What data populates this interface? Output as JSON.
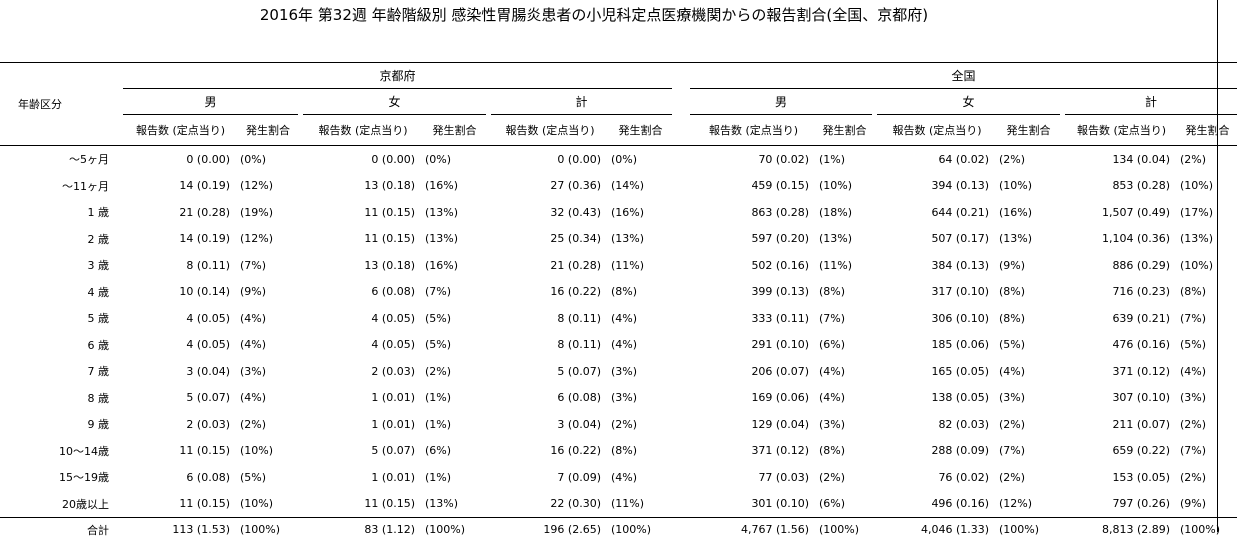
{
  "title": "2016年 第32週 年齢階級別 感染性胃腸炎患者の小児科定点医療機関からの報告割合(全国、京都府)",
  "headers": {
    "age_group": "年齢区分",
    "regions": [
      "京都府",
      "全国"
    ],
    "sexes": [
      "男",
      "女",
      "計"
    ],
    "count": "報告数 (定点当り)",
    "ratio": "発生割合"
  },
  "rows": [
    {
      "age": "～5ヶ月",
      "kyoto": [
        [
          "0 (0.00)",
          "(0%)"
        ],
        [
          "0 (0.00)",
          "(0%)"
        ],
        [
          "0 (0.00)",
          "(0%)"
        ]
      ],
      "national": [
        [
          "70 (0.02)",
          "(1%)"
        ],
        [
          "64 (0.02)",
          "(2%)"
        ],
        [
          "134 (0.04)",
          "(2%)"
        ]
      ]
    },
    {
      "age": "～11ヶ月",
      "kyoto": [
        [
          "14 (0.19)",
          "(12%)"
        ],
        [
          "13 (0.18)",
          "(16%)"
        ],
        [
          "27 (0.36)",
          "(14%)"
        ]
      ],
      "national": [
        [
          "459 (0.15)",
          "(10%)"
        ],
        [
          "394 (0.13)",
          "(10%)"
        ],
        [
          "853 (0.28)",
          "(10%)"
        ]
      ]
    },
    {
      "age": "1 歳",
      "kyoto": [
        [
          "21 (0.28)",
          "(19%)"
        ],
        [
          "11 (0.15)",
          "(13%)"
        ],
        [
          "32 (0.43)",
          "(16%)"
        ]
      ],
      "national": [
        [
          "863 (0.28)",
          "(18%)"
        ],
        [
          "644 (0.21)",
          "(16%)"
        ],
        [
          "1,507 (0.49)",
          "(17%)"
        ]
      ]
    },
    {
      "age": "2 歳",
      "kyoto": [
        [
          "14 (0.19)",
          "(12%)"
        ],
        [
          "11 (0.15)",
          "(13%)"
        ],
        [
          "25 (0.34)",
          "(13%)"
        ]
      ],
      "national": [
        [
          "597 (0.20)",
          "(13%)"
        ],
        [
          "507 (0.17)",
          "(13%)"
        ],
        [
          "1,104 (0.36)",
          "(13%)"
        ]
      ]
    },
    {
      "age": "3 歳",
      "kyoto": [
        [
          "8 (0.11)",
          "(7%)"
        ],
        [
          "13 (0.18)",
          "(16%)"
        ],
        [
          "21 (0.28)",
          "(11%)"
        ]
      ],
      "national": [
        [
          "502 (0.16)",
          "(11%)"
        ],
        [
          "384 (0.13)",
          "(9%)"
        ],
        [
          "886 (0.29)",
          "(10%)"
        ]
      ]
    },
    {
      "age": "4 歳",
      "kyoto": [
        [
          "10 (0.14)",
          "(9%)"
        ],
        [
          "6 (0.08)",
          "(7%)"
        ],
        [
          "16 (0.22)",
          "(8%)"
        ]
      ],
      "national": [
        [
          "399 (0.13)",
          "(8%)"
        ],
        [
          "317 (0.10)",
          "(8%)"
        ],
        [
          "716 (0.23)",
          "(8%)"
        ]
      ]
    },
    {
      "age": "5 歳",
      "kyoto": [
        [
          "4 (0.05)",
          "(4%)"
        ],
        [
          "4 (0.05)",
          "(5%)"
        ],
        [
          "8 (0.11)",
          "(4%)"
        ]
      ],
      "national": [
        [
          "333 (0.11)",
          "(7%)"
        ],
        [
          "306 (0.10)",
          "(8%)"
        ],
        [
          "639 (0.21)",
          "(7%)"
        ]
      ]
    },
    {
      "age": "6 歳",
      "kyoto": [
        [
          "4 (0.05)",
          "(4%)"
        ],
        [
          "4 (0.05)",
          "(5%)"
        ],
        [
          "8 (0.11)",
          "(4%)"
        ]
      ],
      "national": [
        [
          "291 (0.10)",
          "(6%)"
        ],
        [
          "185 (0.06)",
          "(5%)"
        ],
        [
          "476 (0.16)",
          "(5%)"
        ]
      ]
    },
    {
      "age": "7 歳",
      "kyoto": [
        [
          "3 (0.04)",
          "(3%)"
        ],
        [
          "2 (0.03)",
          "(2%)"
        ],
        [
          "5 (0.07)",
          "(3%)"
        ]
      ],
      "national": [
        [
          "206 (0.07)",
          "(4%)"
        ],
        [
          "165 (0.05)",
          "(4%)"
        ],
        [
          "371 (0.12)",
          "(4%)"
        ]
      ]
    },
    {
      "age": "8 歳",
      "kyoto": [
        [
          "5 (0.07)",
          "(4%)"
        ],
        [
          "1 (0.01)",
          "(1%)"
        ],
        [
          "6 (0.08)",
          "(3%)"
        ]
      ],
      "national": [
        [
          "169 (0.06)",
          "(4%)"
        ],
        [
          "138 (0.05)",
          "(3%)"
        ],
        [
          "307 (0.10)",
          "(3%)"
        ]
      ]
    },
    {
      "age": "9 歳",
      "kyoto": [
        [
          "2 (0.03)",
          "(2%)"
        ],
        [
          "1 (0.01)",
          "(1%)"
        ],
        [
          "3 (0.04)",
          "(2%)"
        ]
      ],
      "national": [
        [
          "129 (0.04)",
          "(3%)"
        ],
        [
          "82 (0.03)",
          "(2%)"
        ],
        [
          "211 (0.07)",
          "(2%)"
        ]
      ]
    },
    {
      "age": "10～14歳",
      "kyoto": [
        [
          "11 (0.15)",
          "(10%)"
        ],
        [
          "5 (0.07)",
          "(6%)"
        ],
        [
          "16 (0.22)",
          "(8%)"
        ]
      ],
      "national": [
        [
          "371 (0.12)",
          "(8%)"
        ],
        [
          "288 (0.09)",
          "(7%)"
        ],
        [
          "659 (0.22)",
          "(7%)"
        ]
      ]
    },
    {
      "age": "15～19歳",
      "kyoto": [
        [
          "6 (0.08)",
          "(5%)"
        ],
        [
          "1 (0.01)",
          "(1%)"
        ],
        [
          "7 (0.09)",
          "(4%)"
        ]
      ],
      "national": [
        [
          "77 (0.03)",
          "(2%)"
        ],
        [
          "76 (0.02)",
          "(2%)"
        ],
        [
          "153 (0.05)",
          "(2%)"
        ]
      ]
    },
    {
      "age": "20歳以上",
      "kyoto": [
        [
          "11 (0.15)",
          "(10%)"
        ],
        [
          "11 (0.15)",
          "(13%)"
        ],
        [
          "22 (0.30)",
          "(11%)"
        ]
      ],
      "national": [
        [
          "301 (0.10)",
          "(6%)"
        ],
        [
          "496 (0.16)",
          "(12%)"
        ],
        [
          "797 (0.26)",
          "(9%)"
        ]
      ]
    }
  ],
  "total": {
    "age": "合計",
    "kyoto": [
      [
        "113 (1.53)",
        "(100%)"
      ],
      [
        "83 (1.12)",
        "(100%)"
      ],
      [
        "196 (2.65)",
        "(100%)"
      ]
    ],
    "national": [
      [
        "4,767 (1.56)",
        "(100%)"
      ],
      [
        "4,046 (1.33)",
        "(100%)"
      ],
      [
        "8,813 (2.89)",
        "(100%)"
      ]
    ]
  }
}
